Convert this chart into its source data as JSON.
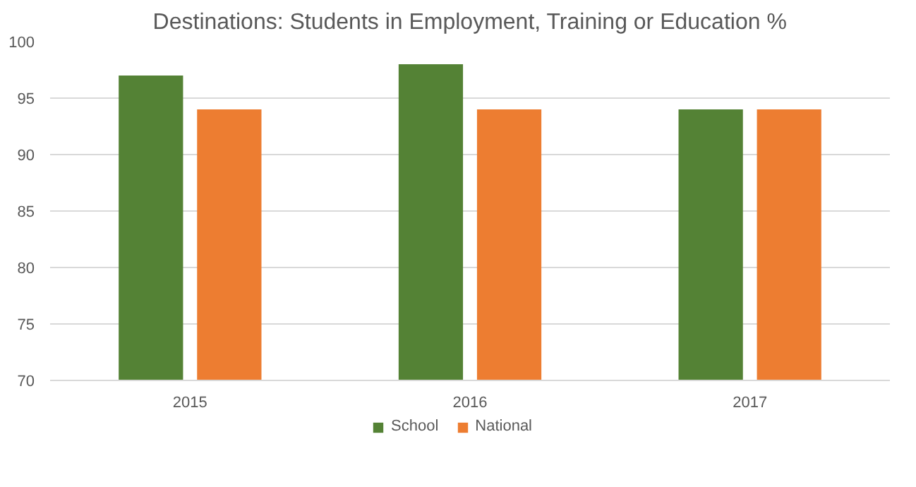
{
  "chart_data": {
    "type": "bar",
    "title": "Destinations: Students in Employment, Training or Education %",
    "categories": [
      "2015",
      "2016",
      "2017"
    ],
    "series": [
      {
        "name": "School",
        "color": "#548235",
        "values": [
          97,
          98,
          94
        ]
      },
      {
        "name": "National",
        "color": "#ed7d31",
        "values": [
          94,
          94,
          94
        ]
      }
    ],
    "ylim": [
      70,
      100
    ],
    "yticks": [
      70,
      75,
      80,
      85,
      90,
      95,
      100
    ],
    "grid": "y",
    "legend": "bottom"
  }
}
